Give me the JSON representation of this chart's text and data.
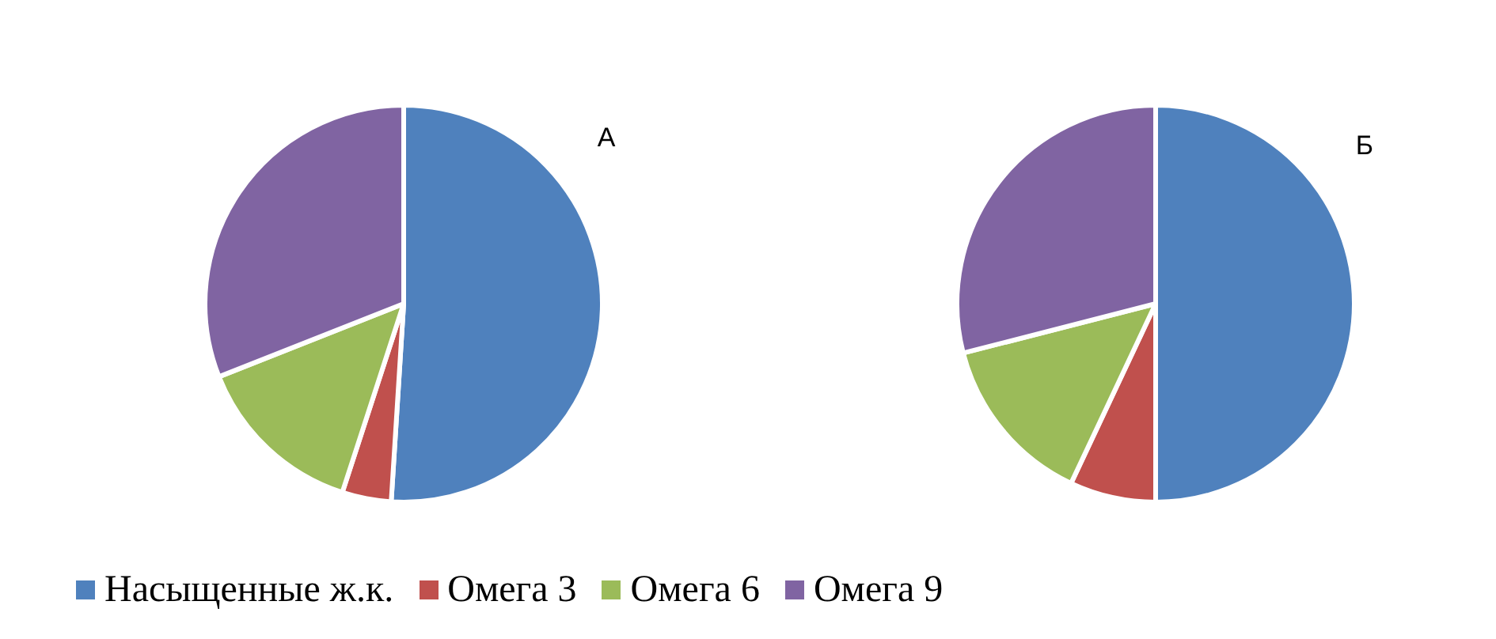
{
  "chart_data": [
    {
      "type": "pie",
      "title": "А",
      "categories": [
        "Насыщенные ж.к.",
        "Омега 3",
        "Омега 6",
        "Омега 9"
      ],
      "values": [
        51,
        4,
        14,
        31
      ],
      "colors": [
        "#4f81bd",
        "#c0504d",
        "#9bbb59",
        "#8064a2"
      ],
      "legend": "bottom"
    },
    {
      "type": "pie",
      "title": "Б",
      "categories": [
        null,
        null,
        null,
        null
      ],
      "values": [
        50,
        7,
        14,
        29
      ],
      "colors": [
        "#4f81bd",
        "#c0504d",
        "#9bbb59",
        "#8064a2"
      ]
    }
  ]
}
